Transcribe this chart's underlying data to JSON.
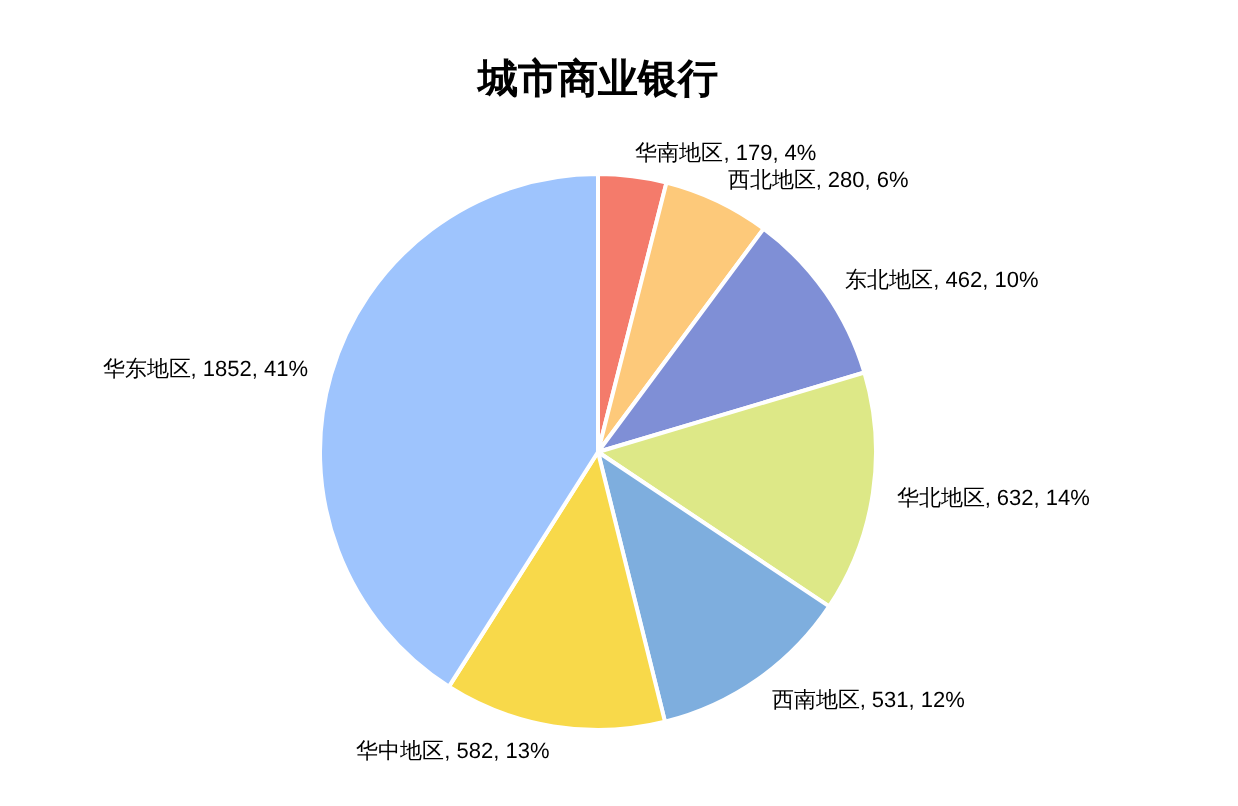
{
  "chart_data": {
    "type": "pie",
    "title": "城市商业银行",
    "categories": [
      "华南地区",
      "西北地区",
      "东北地区",
      "华北地区",
      "西南地区",
      "华中地区",
      "华东地区"
    ],
    "values": [
      179,
      280,
      462,
      632,
      531,
      582,
      1852
    ],
    "colors": [
      "#f47b6b",
      "#fdc97a",
      "#7f8fd6",
      "#dde887",
      "#7eaede",
      "#f8d94a",
      "#9ec4fd"
    ],
    "value_labels": [
      "179, 4%",
      "280, 6%",
      "462, 10%",
      "632, 14%",
      "531, 12%",
      "582, 13%",
      "1852, 41%"
    ]
  }
}
